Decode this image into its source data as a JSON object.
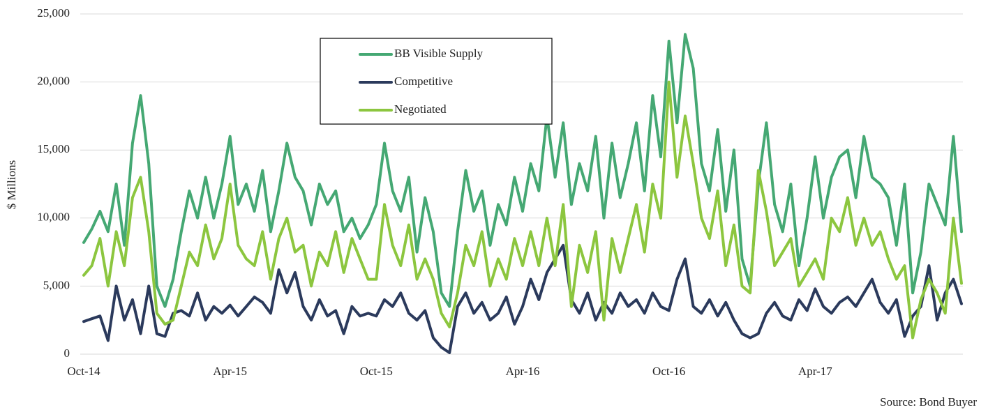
{
  "chart_data": {
    "type": "line",
    "y_label": "$ Millions",
    "source": "Source: Bond Buyer",
    "categories": [
      "Oct-14",
      null,
      null,
      null,
      null,
      null,
      null,
      null,
      null,
      null,
      null,
      null,
      null,
      null,
      null,
      null,
      null,
      null,
      "Apr-15",
      null,
      null,
      null,
      null,
      null,
      null,
      null,
      null,
      null,
      null,
      null,
      null,
      null,
      null,
      null,
      null,
      null,
      "Oct-15",
      null,
      null,
      null,
      null,
      null,
      null,
      null,
      null,
      null,
      null,
      null,
      null,
      null,
      null,
      null,
      null,
      null,
      "Apr-16",
      null,
      null,
      null,
      null,
      null,
      null,
      null,
      null,
      null,
      null,
      null,
      null,
      null,
      null,
      null,
      null,
      null,
      "Oct-16",
      null,
      null,
      null,
      null,
      null,
      null,
      null,
      null,
      null,
      null,
      null,
      null,
      null,
      null,
      null,
      null,
      null,
      "Apr-17",
      null,
      null,
      null,
      null,
      null,
      null,
      null,
      null,
      null,
      null,
      null,
      null,
      null,
      null,
      null,
      null,
      null,
      null
    ],
    "series": [
      {
        "name": "BB Visible Supply",
        "color": "#45a873",
        "values": [
          8200,
          9200,
          10500,
          9000,
          12500,
          8000,
          15500,
          19000,
          14000,
          5000,
          3500,
          5500,
          9000,
          12000,
          10000,
          13000,
          10000,
          12500,
          16000,
          11000,
          12500,
          10500,
          13500,
          9000,
          12000,
          15500,
          13000,
          12000,
          9500,
          12500,
          11000,
          12000,
          9000,
          10000,
          8500,
          9500,
          11000,
          15500,
          12000,
          10500,
          13000,
          7500,
          11500,
          9000,
          4500,
          3500,
          9000,
          13500,
          10500,
          12000,
          8000,
          11000,
          9500,
          13000,
          10500,
          14000,
          12000,
          17500,
          13000,
          17000,
          11000,
          14000,
          12000,
          16000,
          10000,
          15500,
          11500,
          14000,
          17000,
          12000,
          19000,
          14500,
          23000,
          17000,
          23500,
          21000,
          14000,
          12000,
          16500,
          10500,
          15000,
          7000,
          5000,
          12500,
          17000,
          11000,
          9000,
          12500,
          6500,
          10000,
          14500,
          10000,
          13000,
          14500,
          15000,
          11500,
          16000,
          13000,
          12500,
          11500,
          8000,
          12500,
          4500,
          7500,
          12500,
          11000,
          9500,
          16000,
          9000
        ]
      },
      {
        "name": "Competitive",
        "color": "#2b3a5c",
        "values": [
          2400,
          2600,
          2800,
          1000,
          5000,
          2500,
          4000,
          1500,
          5000,
          1500,
          1300,
          3000,
          3200,
          2800,
          4500,
          2500,
          3500,
          3000,
          3600,
          2800,
          3500,
          4200,
          3800,
          3000,
          6200,
          4500,
          6000,
          3500,
          2500,
          4000,
          2800,
          3200,
          1500,
          3500,
          2800,
          3000,
          2800,
          4000,
          3500,
          4500,
          3000,
          2500,
          3200,
          1200,
          500,
          100,
          3500,
          4500,
          3000,
          3800,
          2500,
          3000,
          4200,
          2200,
          3500,
          5500,
          4000,
          6000,
          7000,
          8000,
          4000,
          3000,
          4500,
          2500,
          3800,
          3000,
          4500,
          3500,
          4000,
          3000,
          4500,
          3500,
          3200,
          5500,
          7000,
          3500,
          3000,
          4000,
          2800,
          3800,
          2500,
          1500,
          1200,
          1500,
          3000,
          3800,
          2800,
          2500,
          4000,
          3200,
          4800,
          3500,
          3000,
          3800,
          4200,
          3500,
          4500,
          5500,
          3800,
          3000,
          4000,
          1300,
          2800,
          3500,
          6500,
          2500,
          4500,
          5500,
          3700
        ]
      },
      {
        "name": "Negotiated",
        "color": "#8cc63f",
        "values": [
          5800,
          6500,
          8500,
          5000,
          9000,
          6500,
          11500,
          13000,
          9000,
          3000,
          2200,
          2500,
          5000,
          7500,
          6500,
          9500,
          7000,
          8500,
          12500,
          8000,
          7000,
          6500,
          9000,
          5500,
          8500,
          10000,
          7500,
          8000,
          5000,
          7500,
          6500,
          9000,
          6000,
          8500,
          7000,
          5500,
          5500,
          11000,
          8000,
          6500,
          9500,
          5500,
          7000,
          5500,
          3000,
          2000,
          4500,
          8000,
          6500,
          9000,
          5000,
          7000,
          5500,
          8500,
          6500,
          9000,
          6500,
          10000,
          6500,
          11000,
          3500,
          8000,
          6000,
          9000,
          2500,
          8500,
          6000,
          8500,
          11000,
          7500,
          12500,
          10000,
          20000,
          13000,
          17500,
          14000,
          10000,
          8500,
          12000,
          6500,
          9500,
          5000,
          4500,
          13500,
          10500,
          6500,
          7500,
          8500,
          5000,
          6000,
          7000,
          5500,
          10000,
          9000,
          11500,
          8000,
          10000,
          8000,
          9000,
          7000,
          5500,
          6500,
          1200,
          4000,
          5500,
          4500,
          3000,
          10000,
          5200
        ]
      }
    ],
    "ylim": [
      0,
      25000
    ],
    "yticks": [
      0,
      {
        "value": 5000,
        "label": "5,000"
      },
      {
        "value": 10000,
        "label": "10,000"
      },
      {
        "value": 15000,
        "label": "15,000"
      },
      {
        "value": 20000,
        "label": "20,000"
      },
      {
        "value": 25000,
        "label": "25,000"
      }
    ],
    "grid": true,
    "legend": "top-center"
  }
}
